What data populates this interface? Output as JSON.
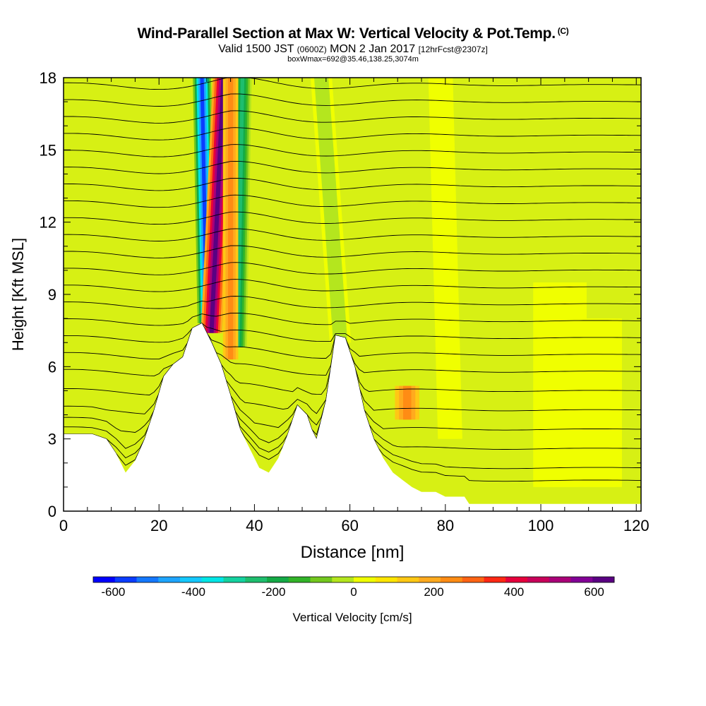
{
  "header": {
    "title": "Wind-Parallel Section at Max W: Vertical Velocity & Pot.Temp.",
    "copyright": "(C)",
    "valid_label": "Valid 1500 JST",
    "valid_utc": "(0600Z)",
    "valid_date": "MON 2 Jan 2017",
    "forecast": "[12hrFcst@2307z]",
    "box_info": "boxWmax=692@35.46,138.25,3074m"
  },
  "colors": {
    "terrain": "#ffffff",
    "colorbar": [
      "#0000ff",
      "#0a3cff",
      "#1478ff",
      "#1ea5ff",
      "#14c8ff",
      "#00e6e6",
      "#14d2a0",
      "#1ebe6e",
      "#14aa46",
      "#32b428",
      "#73c81e",
      "#b4e61e",
      "#f0ff00",
      "#ffe600",
      "#ffc814",
      "#ffaa1e",
      "#ff8c14",
      "#ff6414",
      "#ff2814",
      "#e6003c",
      "#c8005a",
      "#aa0078",
      "#820096",
      "#5a0082"
    ]
  },
  "chart_data": {
    "type": "heatmap",
    "xlabel": "Distance [nm]",
    "ylabel": "Height [Kft MSL]",
    "xlim": [
      0,
      121
    ],
    "ylim": [
      0,
      18
    ],
    "x_ticks": [
      "0",
      "20",
      "40",
      "60",
      "80",
      "100",
      "120"
    ],
    "y_ticks": [
      "0",
      "3",
      "6",
      "9",
      "12",
      "15",
      "18"
    ],
    "colorbar": {
      "label": "Vertical Velocity [cm/s]",
      "range": [
        -650,
        650
      ],
      "step": 50,
      "tick_labels": [
        "-600",
        "-400",
        "-200",
        "0",
        "200",
        "400",
        "600"
      ],
      "tick_values": [
        -600,
        -400,
        -200,
        0,
        200,
        400,
        600
      ]
    },
    "terrain_profile": [
      [
        0,
        3.2
      ],
      [
        6,
        3.2
      ],
      [
        9,
        3.0
      ],
      [
        11,
        2.4
      ],
      [
        13,
        1.6
      ],
      [
        15,
        2.1
      ],
      [
        17,
        3.0
      ],
      [
        19,
        4.2
      ],
      [
        21,
        5.6
      ],
      [
        23,
        6.1
      ],
      [
        25,
        6.4
      ],
      [
        27,
        7.6
      ],
      [
        29,
        7.8
      ],
      [
        31,
        7.0
      ],
      [
        33,
        6.1
      ],
      [
        35,
        4.8
      ],
      [
        37,
        3.4
      ],
      [
        39,
        2.6
      ],
      [
        41,
        1.8
      ],
      [
        43,
        1.6
      ],
      [
        45,
        2.2
      ],
      [
        47,
        3.2
      ],
      [
        49,
        4.4
      ],
      [
        51,
        4.0
      ],
      [
        52,
        3.4
      ],
      [
        53,
        3.0
      ],
      [
        55,
        4.6
      ],
      [
        57,
        7.3
      ],
      [
        59,
        7.2
      ],
      [
        61,
        6.0
      ],
      [
        63,
        4.2
      ],
      [
        65,
        3.0
      ],
      [
        67,
        2.2
      ],
      [
        69,
        1.6
      ],
      [
        71,
        1.3
      ],
      [
        73,
        1.0
      ],
      [
        75,
        0.8
      ],
      [
        78,
        0.8
      ],
      [
        80,
        0.6
      ],
      [
        84,
        0.6
      ],
      [
        85,
        0.3
      ],
      [
        121,
        0.3
      ]
    ],
    "w_features": [
      {
        "x_base": 30.0,
        "y_base": 7.8,
        "x_top": 29.0,
        "y_top": 18,
        "width": 1.2,
        "w": -600
      },
      {
        "x_base": 31.0,
        "y_base": 7.4,
        "x_top": 33.5,
        "y_top": 18,
        "width": 1.4,
        "w": 500
      },
      {
        "x_base": 36.5,
        "y_base": 6.8,
        "x_top": 37.5,
        "y_top": 18,
        "width": 1.2,
        "w": -300
      },
      {
        "x_base": 35.0,
        "y_base": 6.3,
        "x_top": 35.0,
        "y_top": 18,
        "width": 1.0,
        "w": 150
      },
      {
        "x_base": 58.0,
        "y_base": 7.0,
        "x_top": 54.0,
        "y_top": 18,
        "width": 1.4,
        "w": -100
      },
      {
        "x_base": 72.0,
        "y_base": 3.8,
        "x_top": 72.0,
        "y_top": 5.2,
        "width": 1.6,
        "w": 150
      },
      {
        "x_base": 81.0,
        "y_base": 3.0,
        "x_top": 79.0,
        "y_top": 18,
        "width": 1.6,
        "w": -50
      },
      {
        "x_base": 104.0,
        "y_base": 1.0,
        "x_top": 104.0,
        "y_top": 9.5,
        "width": 3.5,
        "w": -50
      },
      {
        "x_base": 113.0,
        "y_base": 1.0,
        "x_top": 113.0,
        "y_top": 8.0,
        "width": 2.5,
        "w": -50
      }
    ],
    "theta_lines": {
      "count": 26,
      "base_heights": [
        1.0,
        1.8,
        2.6,
        3.4,
        4.2,
        5.0,
        5.8,
        6.5,
        7.2,
        7.9,
        8.6,
        9.3,
        10.0,
        10.7,
        11.4,
        12.1,
        12.8,
        13.5,
        14.2,
        14.9,
        15.6,
        16.3,
        17.0,
        17.7,
        18.4,
        19.1
      ]
    }
  }
}
